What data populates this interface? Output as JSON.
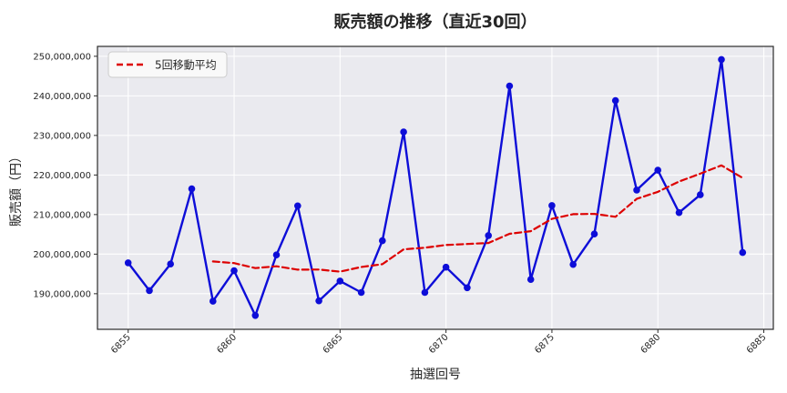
{
  "chart_data": {
    "type": "line",
    "title": "販売額の推移（直近30回）",
    "xlabel": "抽選回号",
    "ylabel": "販売額（円）",
    "x": [
      6855,
      6856,
      6857,
      6858,
      6859,
      6860,
      6861,
      6862,
      6863,
      6864,
      6865,
      6866,
      6867,
      6868,
      6869,
      6870,
      6871,
      6872,
      6873,
      6874,
      6875,
      6876,
      6877,
      6878,
      6879,
      6880,
      6881,
      6882,
      6883,
      6884
    ],
    "series": [
      {
        "name": "販売額",
        "color": "#0d0dd8",
        "line_style": "solid",
        "marker": "circle",
        "values": [
          197800000,
          190800000,
          197500000,
          216500000,
          188100000,
          195800000,
          184500000,
          199800000,
          212200000,
          188200000,
          193200000,
          190300000,
          203400000,
          230900000,
          190300000,
          196700000,
          191500000,
          204700000,
          242500000,
          193600000,
          212300000,
          197400000,
          205100000,
          238800000,
          216200000,
          221200000,
          210500000,
          215000000,
          249200000,
          200400000
        ]
      },
      {
        "name": "5回移動平均",
        "color": "#dd0000",
        "line_style": "dashed",
        "marker": "none",
        "values": [
          null,
          null,
          null,
          null,
          198140000,
          197740000,
          196480000,
          196940000,
          196080000,
          196100000,
          195580000,
          196740000,
          197460000,
          201200000,
          201620000,
          202320000,
          202560000,
          202820000,
          205140000,
          205800000,
          208920000,
          210100000,
          210180000,
          209440000,
          213960000,
          215740000,
          218360000,
          220340000,
          222420000,
          219260000
        ]
      }
    ],
    "legend": {
      "position": "upper-left",
      "entries": [
        "5回移動平均"
      ]
    },
    "x_ticks": [
      6855,
      6860,
      6865,
      6870,
      6875,
      6880,
      6885
    ],
    "x_tick_labels": [
      "6855",
      "6860",
      "6865",
      "6870",
      "6875",
      "6880",
      "6885"
    ],
    "y_ticks": [
      190000000,
      200000000,
      210000000,
      220000000,
      230000000,
      240000000,
      250000000
    ],
    "y_tick_labels": [
      "190,000,000",
      "200,000,000",
      "210,000,000",
      "220,000,000",
      "230,000,000",
      "240,000,000",
      "250,000,000"
    ],
    "xlim": [
      6853.55,
      6885.45
    ],
    "ylim": [
      181000000,
      252500000
    ],
    "grid": true,
    "colors": {
      "plot_background": "#eaeaef",
      "figure_background": "#ffffff",
      "grid": "#ffffff",
      "spine": "#2b2b2b",
      "tick_text": "#262626",
      "legend_background": "#f9f9f9",
      "legend_border": "#cccccc"
    }
  }
}
